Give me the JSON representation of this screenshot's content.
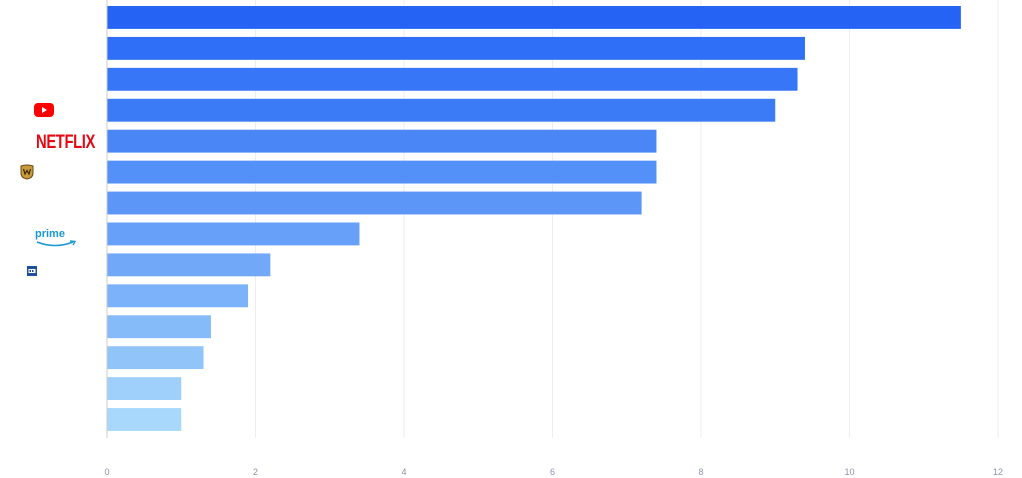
{
  "chart_data": {
    "type": "bar",
    "orientation": "horizontal",
    "categories": [
      "",
      "",
      "",
      "youtube-logo",
      "netflix-logo",
      "warner-bros-logo",
      "",
      "prime-video-logo",
      "studio-logo",
      "",
      "",
      "",
      "",
      ""
    ],
    "values": [
      11.5,
      9.4,
      9.3,
      9.0,
      7.4,
      7.4,
      7.2,
      3.4,
      2.2,
      1.9,
      1.4,
      1.3,
      1.0,
      1.0
    ],
    "xlim": [
      0,
      12
    ],
    "xticks": [
      "0",
      "2",
      "4",
      "6",
      "8",
      "10",
      "12"
    ],
    "grid": "vertical",
    "colors": [
      "#2563f5",
      "#2f6ef7",
      "#3676f7",
      "#3b7cf6",
      "#4a86f6",
      "#5390f7",
      "#5c97f7",
      "#66a0f8",
      "#71a9f8",
      "#7cb2f9",
      "#86bbf9",
      "#91c5fa",
      "#9fd0fb",
      "#a8d8fb"
    ],
    "title": "",
    "xlabel": "",
    "ylabel": ""
  },
  "logos": {
    "youtube": "youtube-icon",
    "netflix": "NETFLIX",
    "warner": "warner-bros-icon",
    "prime": "prime",
    "studio": "studio-icon"
  }
}
